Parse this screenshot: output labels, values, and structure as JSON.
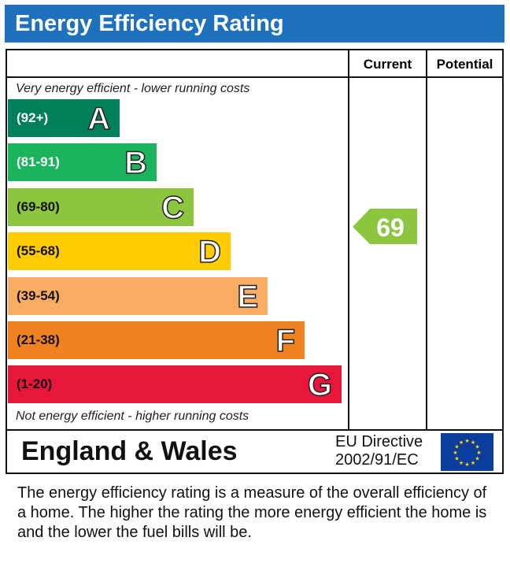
{
  "title": "Energy Efficiency Rating",
  "columns": {
    "current": "Current",
    "potential": "Potential"
  },
  "top_note": "Very energy efficient - lower running costs",
  "bottom_note": "Not energy efficient - higher running costs",
  "chart_data": {
    "type": "bar",
    "categories": [
      "A",
      "B",
      "C",
      "D",
      "E",
      "F",
      "G"
    ],
    "bands": [
      {
        "letter": "A",
        "range": "(92+)",
        "color": "#00805a",
        "text_color": "#ffffff"
      },
      {
        "letter": "B",
        "range": "(81-91)",
        "color": "#1bb35b",
        "text_color": "#ffffff"
      },
      {
        "letter": "C",
        "range": "(69-80)",
        "color": "#8cc63f",
        "text_color": "#111111"
      },
      {
        "letter": "D",
        "range": "(55-68)",
        "color": "#ffcc00",
        "text_color": "#111111"
      },
      {
        "letter": "E",
        "range": "(39-54)",
        "color": "#f9ac64",
        "text_color": "#111111"
      },
      {
        "letter": "F",
        "range": "(21-38)",
        "color": "#f0821f",
        "text_color": "#111111"
      },
      {
        "letter": "G",
        "range": "(1-20)",
        "color": "#e9163b",
        "text_color": "#111111"
      }
    ],
    "current": {
      "value": 69,
      "band": "C",
      "color": "#8cc63f"
    },
    "potential": null
  },
  "footer": {
    "region": "England & Wales",
    "directive_line1": "EU Directive",
    "directive_line2": "2002/91/EC",
    "flag_icon": "eu-flag-icon"
  },
  "description": "The energy efficiency rating is a measure of the overall efficiency of a home.  The higher the rating the more energy efficient the home is and the lower the fuel bills will be."
}
